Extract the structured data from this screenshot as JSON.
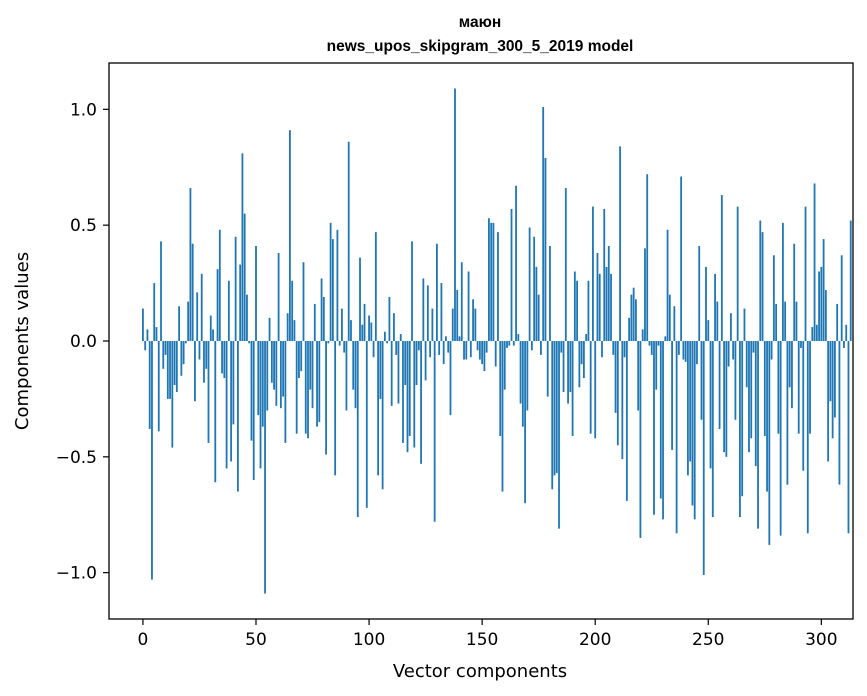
{
  "chart_data": {
    "type": "bar",
    "title": "маюн",
    "subtitle": "news_upos_skipgram_300_5_2019 model",
    "xlabel": "Vector components",
    "ylabel": "Components values",
    "xlim": [
      -15,
      314
    ],
    "ylim": [
      -1.2,
      1.2
    ],
    "xticks": [
      0,
      50,
      100,
      150,
      200,
      250,
      300
    ],
    "yticks": [
      -1.0,
      -0.5,
      0.0,
      0.5,
      1.0
    ],
    "ytick_labels": [
      "−1.0",
      "−0.5",
      "0.0",
      "0.5",
      "1.0"
    ],
    "bar_color": "#1f77b4",
    "grid": false,
    "values": [
      0.14,
      -0.04,
      0.05,
      -0.38,
      -1.03,
      0.25,
      0.06,
      -0.39,
      0.43,
      -0.12,
      -0.06,
      -0.25,
      -0.25,
      -0.46,
      -0.19,
      -0.22,
      0.15,
      -0.15,
      -0.1,
      -0.01,
      0.17,
      0.66,
      0.42,
      -0.26,
      0.21,
      -0.08,
      0.29,
      -0.18,
      -0.12,
      -0.44,
      0.11,
      0.05,
      -0.61,
      0.31,
      0.48,
      -0.14,
      -0.16,
      -0.55,
      0.26,
      -0.52,
      -0.36,
      0.45,
      -0.65,
      0.33,
      0.81,
      0.55,
      0.2,
      -0.01,
      -0.43,
      -0.6,
      0.41,
      -0.32,
      -0.55,
      -0.37,
      -1.09,
      -0.3,
      0.1,
      -0.18,
      -0.21,
      -0.28,
      0.38,
      -0.29,
      -0.24,
      -0.44,
      0.12,
      0.91,
      0.26,
      0.09,
      -0.4,
      -0.16,
      -0.13,
      0.34,
      -0.4,
      -0.42,
      -0.21,
      -0.29,
      0.16,
      -0.37,
      -0.35,
      0.27,
      0.19,
      -0.49,
      -0.01,
      0.51,
      0.44,
      -0.58,
      0.48,
      -0.02,
      0.14,
      -0.05,
      -0.3,
      0.86,
      0.09,
      -0.21,
      -0.29,
      -0.76,
      0.36,
      0.07,
      0.16,
      -0.72,
      0.11,
      0.08,
      -0.07,
      0.47,
      -0.58,
      -0.25,
      -0.64,
      0.04,
      -0.01,
      0.19,
      -0.28,
      0.12,
      -0.06,
      -0.27,
      0.03,
      -0.44,
      -0.19,
      -0.48,
      -0.41,
      0.43,
      -0.46,
      -0.19,
      -0.04,
      -0.53,
      0.27,
      -0.17,
      0.24,
      -0.07,
      0.14,
      -0.78,
      0.42,
      -0.06,
      0.25,
      -0.1,
      0.02,
      -0.05,
      -0.32,
      0.14,
      1.09,
      0.22,
      0.02,
      0.34,
      -0.08,
      -0.08,
      0.3,
      -0.07,
      0.18,
      0.14,
      -0.04,
      -0.08,
      -0.1,
      -0.13,
      -0.05,
      0.53,
      0.51,
      0.51,
      -0.11,
      0.47,
      -0.41,
      -0.65,
      -0.21,
      -0.03,
      -0.02,
      0.57,
      -0.02,
      0.67,
      0.03,
      -0.27,
      -0.37,
      -0.7,
      -0.3,
      0.49,
      -0.04,
      0.45,
      0.32,
      0.2,
      -0.06,
      1.01,
      0.79,
      -0.24,
      0.41,
      -0.64,
      -0.58,
      -0.57,
      -0.81,
      -0.05,
      -0.22,
      0.66,
      -0.27,
      -0.22,
      -0.41,
      0.3,
      0.26,
      -0.2,
      -0.1,
      -0.16,
      0.03,
      0.26,
      -0.4,
      0.58,
      -0.42,
      0.38,
      0.29,
      -0.07,
      0.57,
      0.32,
      0.41,
      0.29,
      -0.06,
      -0.31,
      -0.45,
      0.84,
      -0.51,
      -0.07,
      -0.69,
      0.1,
      0.2,
      0.23,
      0.18,
      -0.3,
      -0.85,
      0.05,
      0.4,
      0.72,
      -0.02,
      -0.06,
      -0.75,
      -0.21,
      -0.02,
      -0.68,
      -0.77,
      0.02,
      0.48,
      0.2,
      -0.47,
      0.15,
      -0.83,
      -0.06,
      0.71,
      -0.08,
      -0.09,
      -0.58,
      -0.52,
      -0.71,
      -0.77,
      -0.1,
      0.41,
      -0.34,
      -1.01,
      0.32,
      0.09,
      -0.55,
      -0.76,
      0.29,
      0.17,
      -0.38,
      0.63,
      -0.48,
      -0.5,
      -0.11,
      0.12,
      -0.08,
      -0.34,
      0.58,
      -0.76,
      -0.67,
      0.14,
      -0.2,
      -0.48,
      -0.42,
      -0.05,
      -0.54,
      -0.81,
      0.52,
      0.47,
      -0.41,
      -0.65,
      -0.88,
      -0.08,
      0.37,
      0.16,
      -0.4,
      -0.84,
      0.51,
      0.17,
      -0.62,
      -0.2,
      -0.29,
      0.42,
      0.17,
      -0.4,
      -0.03,
      -0.56,
      0.58,
      -0.83,
      -0.4,
      0.06,
      0.68,
      0.07,
      0.3,
      0.32,
      0.44,
      0.22,
      -0.52,
      -0.26,
      -0.42,
      -0.33,
      0.16,
      -0.62,
      0.37,
      -0.03,
      0.07,
      -0.83,
      0.52
    ]
  }
}
